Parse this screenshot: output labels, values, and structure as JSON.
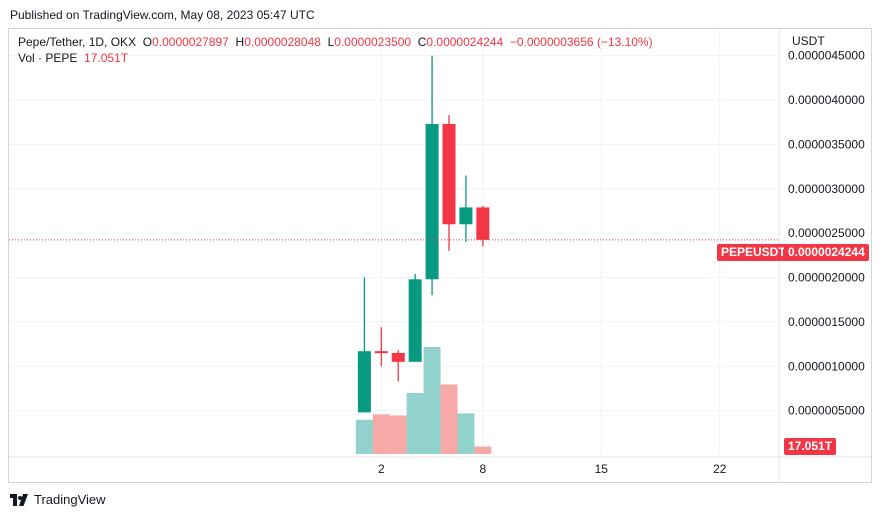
{
  "header": {
    "published": "Published on TradingView.com, May 08, 2023 05:47 UTC"
  },
  "legend": {
    "symbol": "Pepe/Tether, 1D, OKX",
    "open_label": "O",
    "open_value": "0.0000027897",
    "high_label": "H",
    "high_value": "0.0000028048",
    "low_label": "L",
    "low_value": "0.0000023500",
    "close_label": "C",
    "close_value": "0.0000024244",
    "change": "−0.0000003656 (−13.10%)",
    "vol_label": "Vol · PEPE",
    "vol_value": "17.051T"
  },
  "axis": {
    "unit": "USDT"
  },
  "footer": {
    "brand": "TradingView"
  },
  "colors": {
    "up": "#089981",
    "down": "#f23645",
    "vol_up": "#92d2cc",
    "vol_down": "#f7a9a7",
    "grid": "#f0f3fa",
    "text": "#131722"
  },
  "chart_data": {
    "type": "candlestick",
    "price_ylim": [
      0,
      4.8e-06
    ],
    "y_ticks": [
      {
        "value": 5e-07,
        "label": "0.0000005000"
      },
      {
        "value": 1e-06,
        "label": "0.0000010000"
      },
      {
        "value": 1.5e-06,
        "label": "0.0000015000"
      },
      {
        "value": 2e-06,
        "label": "0.0000020000"
      },
      {
        "value": 2.5e-06,
        "label": "0.0000025000"
      },
      {
        "value": 3e-06,
        "label": "0.0000030000"
      },
      {
        "value": 3.5e-06,
        "label": "0.0000035000"
      },
      {
        "value": 4e-06,
        "label": "0.0000040000"
      },
      {
        "value": 4.5e-06,
        "label": "0.0000045000"
      }
    ],
    "x_ticks": [
      {
        "day": 2,
        "label": "2"
      },
      {
        "day": 8,
        "label": "8"
      },
      {
        "day": 15,
        "label": "15"
      },
      {
        "day": 22,
        "label": "22"
      }
    ],
    "x_range": [
      -20,
      25.5
    ],
    "candles": [
      {
        "day": 1,
        "open": 4.8e-07,
        "high": 2e-06,
        "low": 4.8e-07,
        "close": 1.17e-06,
        "volume": 0.32
      },
      {
        "day": 2,
        "open": 1.17e-06,
        "high": 1.44e-06,
        "low": 1e-06,
        "close": 1.15e-06,
        "volume": 0.37
      },
      {
        "day": 3,
        "open": 1.15e-06,
        "high": 1.18e-06,
        "low": 8.3e-07,
        "close": 1.05e-06,
        "volume": 0.36
      },
      {
        "day": 4,
        "open": 1.05e-06,
        "high": 2.04e-06,
        "low": 1.05e-06,
        "close": 1.98e-06,
        "volume": 0.57
      },
      {
        "day": 5,
        "open": 1.98e-06,
        "high": 4.5e-06,
        "low": 1.8e-06,
        "close": 3.73e-06,
        "volume": 1.0
      },
      {
        "day": 6,
        "open": 3.73e-06,
        "high": 3.83e-06,
        "low": 2.3e-06,
        "close": 2.6e-06,
        "volume": 0.65
      },
      {
        "day": 7,
        "open": 2.6e-06,
        "high": 3.15e-06,
        "low": 2.4e-06,
        "close": 2.79e-06,
        "volume": 0.38
      },
      {
        "day": 8,
        "open": 2.7897e-06,
        "high": 2.8048e-06,
        "low": 2.35e-06,
        "close": 2.4244e-06,
        "volume": 0.07
      }
    ],
    "last_price_label": "PEPEUSDT",
    "last_price_value": "0.0000024244",
    "last_volume_value": "17.051T"
  }
}
